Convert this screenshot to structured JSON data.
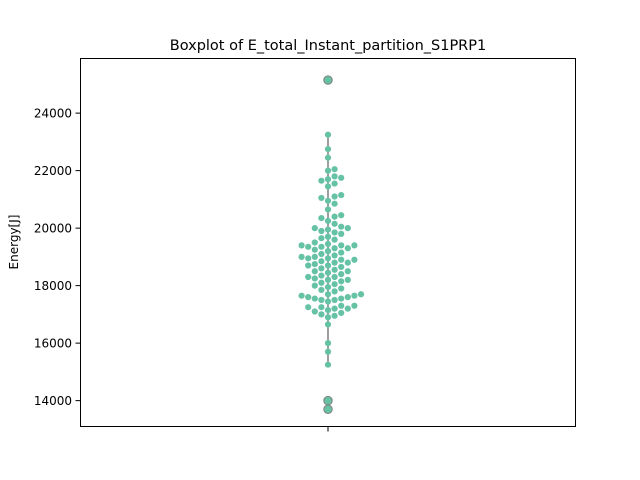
{
  "chart_data": {
    "type": "box",
    "title": "Boxplot of E_total_Instant_partition_S1PRP1",
    "xlabel": "",
    "ylabel": "Energy[J]",
    "ylim": [
      13100,
      25900
    ],
    "yticks": [
      14000,
      16000,
      18000,
      20000,
      22000,
      24000
    ],
    "ytick_labels": [
      "14000",
      "16000",
      "18000",
      "20000",
      "22000",
      "24000"
    ],
    "grid": false,
    "box": {
      "min": 15250,
      "q1": 17500,
      "median": 18950,
      "q3": 20000,
      "max": 23300,
      "outliers": [
        13700,
        14000,
        25150
      ]
    },
    "swarm_points": [
      15250,
      15700,
      16000,
      16650,
      16900,
      16950,
      17000,
      17050,
      17100,
      17150,
      17200,
      17200,
      17250,
      17250,
      17300,
      17300,
      17450,
      17500,
      17500,
      17550,
      17550,
      17600,
      17600,
      17650,
      17650,
      17700,
      17700,
      17800,
      17850,
      17900,
      17950,
      18000,
      18050,
      18100,
      18150,
      18200,
      18200,
      18250,
      18300,
      18300,
      18350,
      18400,
      18450,
      18500,
      18500,
      18550,
      18600,
      18650,
      18700,
      18700,
      18750,
      18800,
      18800,
      18850,
      18900,
      18900,
      18950,
      18950,
      19000,
      19000,
      19050,
      19100,
      19150,
      19200,
      19250,
      19300,
      19300,
      19350,
      19350,
      19400,
      19400,
      19400,
      19450,
      19500,
      19600,
      19650,
      19700,
      19800,
      19850,
      19900,
      19950,
      20000,
      20000,
      20050,
      20150,
      20250,
      20350,
      20400,
      20450,
      20650,
      20850,
      20950,
      21050,
      21100,
      21150,
      21450,
      21550,
      21650,
      21700,
      21750,
      21800,
      22000,
      22050,
      22450,
      22750,
      23250
    ],
    "colors": {
      "point": "#66c2a5",
      "outlier": "#7f7f7f",
      "whisker": "#5f5f5f"
    }
  }
}
